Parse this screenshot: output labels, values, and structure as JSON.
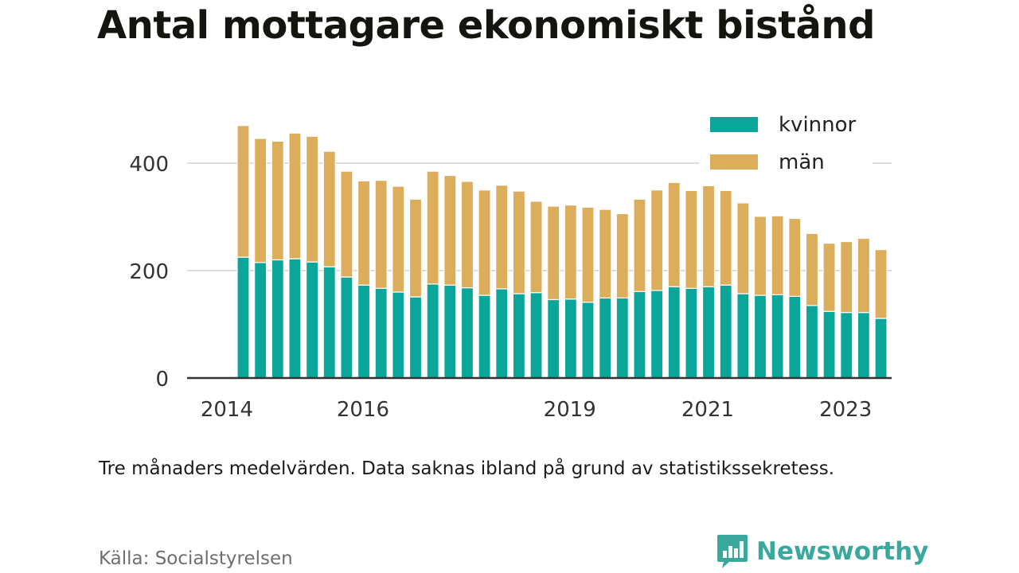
{
  "title": "Antal mottagare ekonomiskt bistånd",
  "note": "Tre månaders medelvärden. Data saknas ibland på grund av statistikssekretess.",
  "source": "Källa: Socialstyrelsen",
  "brand": {
    "name": "Newsworthy",
    "icon": "newsworthy-logo-icon",
    "color": "#3aa89c"
  },
  "colors": {
    "kvinnor": "#0aa699",
    "man": "#dcae5c",
    "grid": "#dddddd",
    "axis": "#333333"
  },
  "chart_data": {
    "type": "bar",
    "stacked": true,
    "title": "Antal mottagare ekonomiskt bistånd",
    "xlabel": "",
    "ylabel": "",
    "ylim": [
      0,
      470
    ],
    "yticks": [
      0,
      200,
      400
    ],
    "xticks": [
      {
        "label": "2014",
        "index": -0.95
      },
      {
        "label": "2016",
        "index": 6.95
      },
      {
        "label": "2019",
        "index": 18.95
      },
      {
        "label": "2021",
        "index": 26.95
      },
      {
        "label": "2023",
        "index": 34.95
      }
    ],
    "grid": true,
    "legend": "top-right",
    "series": [
      {
        "name": "kvinnor",
        "values": [
          225,
          215,
          220,
          222,
          216,
          207,
          188,
          173,
          167,
          160,
          151,
          175,
          173,
          168,
          154,
          166,
          157,
          159,
          146,
          147,
          141,
          149,
          149,
          161,
          163,
          170,
          167,
          170,
          173,
          157,
          154,
          155,
          152,
          135,
          124,
          122,
          122,
          111
        ]
      },
      {
        "name": "män",
        "values": [
          245,
          231,
          221,
          234,
          234,
          215,
          197,
          194,
          201,
          197,
          182,
          210,
          204,
          198,
          196,
          193,
          191,
          170,
          174,
          175,
          177,
          165,
          157,
          172,
          187,
          194,
          182,
          188,
          176,
          169,
          147,
          147,
          145,
          134,
          127,
          132,
          138,
          128
        ]
      }
    ]
  }
}
